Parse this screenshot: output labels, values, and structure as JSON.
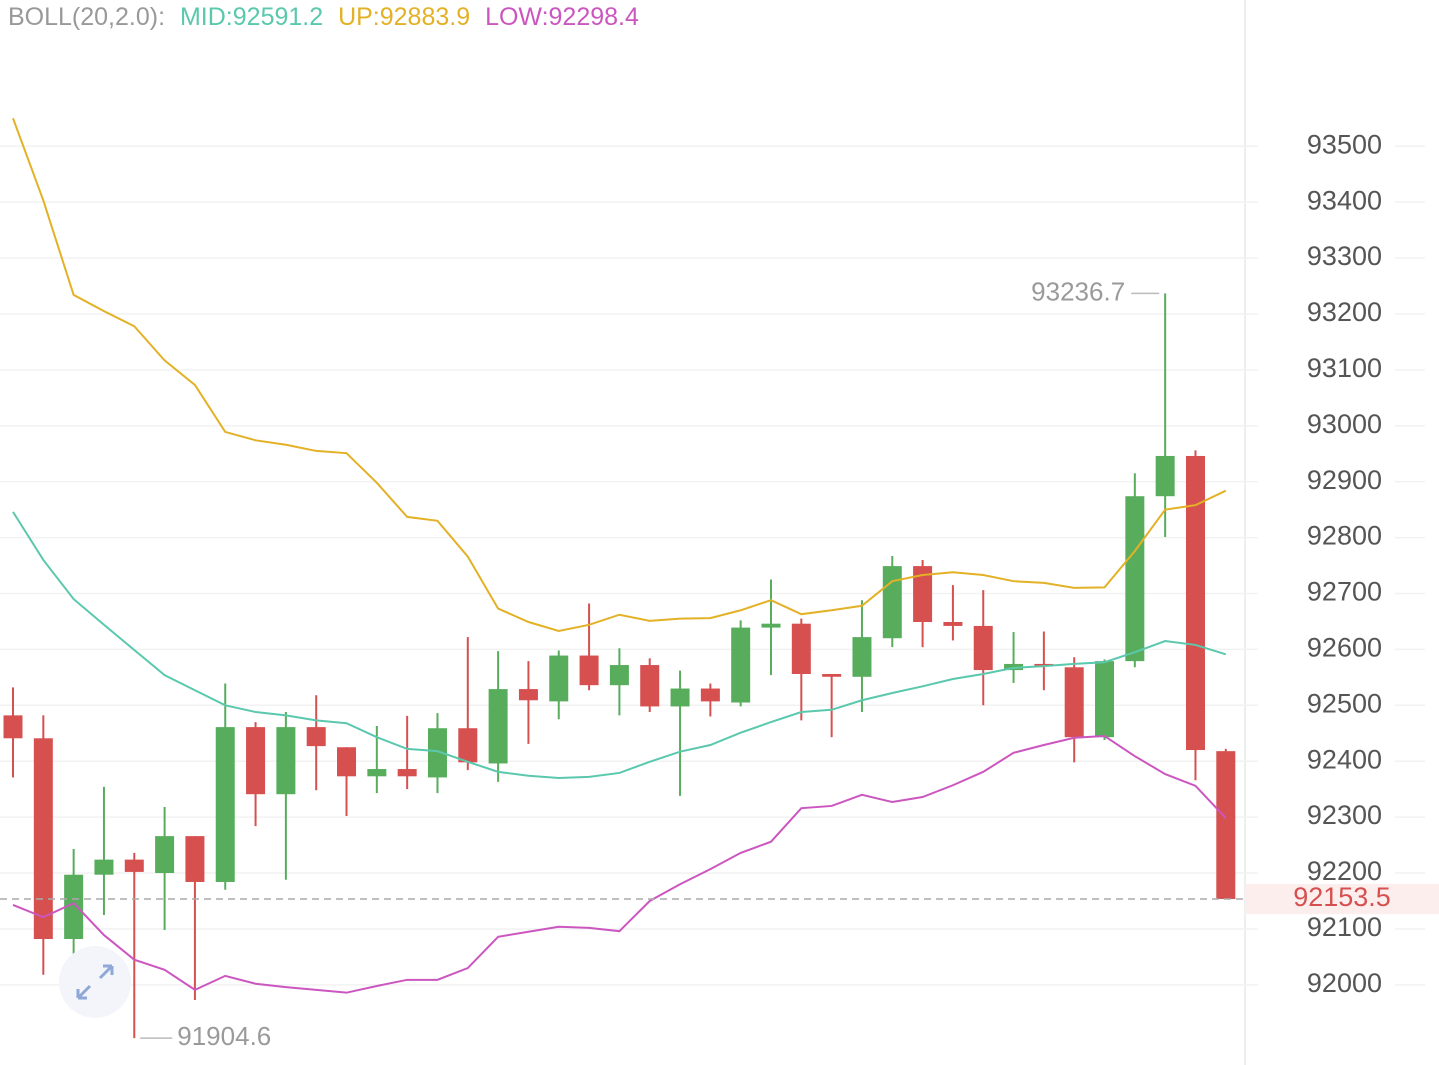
{
  "chart_data": {
    "type": "candlestick",
    "indicator_label": "BOLL(20,2.0):",
    "indicator_label_color": "#999999",
    "candles": {
      "open": [
        92482,
        92441,
        92082,
        92197,
        92224,
        92200,
        92266,
        92184,
        92461,
        92341,
        92461,
        92425,
        92373,
        92386,
        92371,
        92459,
        92396,
        92529,
        92507,
        92589,
        92536,
        92572,
        92498,
        92530,
        92505,
        92639,
        92646,
        92556,
        92551,
        92620,
        92749,
        92649,
        92642,
        92563,
        92574,
        92568,
        92443,
        92579,
        92874,
        92946,
        92418
      ],
      "high": [
        92532,
        92482,
        92243,
        92354,
        92236,
        92318,
        92266,
        92539,
        92470,
        92488,
        92518,
        92425,
        92463,
        92481,
        92486,
        92622,
        92597,
        92579,
        92598,
        92682,
        92602,
        92584,
        92562,
        92539,
        92652,
        92725,
        92655,
        92556,
        92688,
        92767,
        92760,
        92715,
        92706,
        92631,
        92632,
        92586,
        92582,
        92915,
        93236.7,
        92956,
        92422
      ],
      "low": [
        92371,
        92018,
        92054,
        92125,
        91904.6,
        92098,
        91973,
        92170,
        92284,
        92188,
        92348,
        92302,
        92343,
        92350,
        92343,
        92384,
        92363,
        92431,
        92475,
        92527,
        92482,
        92488,
        92338,
        92480,
        92498,
        92554,
        92473,
        92443,
        92488,
        92604,
        92604,
        92616,
        92500,
        92540,
        92527,
        92398,
        92438,
        92568,
        92801,
        92366,
        92153.5
      ],
      "close": [
        92441,
        92082,
        92197,
        92224,
        92202,
        92266,
        92184,
        92461,
        92341,
        92461,
        92427,
        92373,
        92386,
        92373,
        92459,
        92398,
        92529,
        92509,
        92589,
        92536,
        92572,
        92498,
        92530,
        92507,
        92639,
        92646,
        92556,
        92551,
        92622,
        92749,
        92649,
        92642,
        92563,
        92574,
        92572,
        92443,
        92579,
        92874,
        92946,
        92420,
        92153.5
      ],
      "up_color": "#58ad5d",
      "down_color": "#d65050"
    },
    "series": [
      {
        "name": "MID:92591.2",
        "color": "#5ac8ad",
        "values": [
          92846,
          92760,
          92690,
          92644,
          92599,
          92554,
          92527,
          92500,
          92488,
          92482,
          92473,
          92468,
          92443,
          92422,
          92418,
          92399,
          92381,
          92374,
          92370,
          92372,
          92379,
          92399,
          92417,
          92429,
          92451,
          92470,
          92488,
          92492,
          92509,
          92522,
          92534,
          92547,
          92556,
          92567,
          92570,
          92574,
          92577,
          92595,
          92615,
          92608,
          92591.2
        ]
      },
      {
        "name": "UP:92883.9",
        "color": "#e3b126",
        "values": [
          93550,
          93403,
          93234,
          93205,
          93178,
          93117,
          93073,
          92989,
          92974,
          92966,
          92955,
          92951,
          92898,
          92837,
          92830,
          92766,
          92673,
          92649,
          92633,
          92644,
          92662,
          92651,
          92655,
          92656,
          92670,
          92688,
          92663,
          92670,
          92678,
          92722,
          92733,
          92738,
          92733,
          92722,
          92719,
          92710,
          92711,
          92776,
          92850,
          92858,
          92883.9
        ]
      },
      {
        "name": "LOW:92298.4",
        "color": "#cc56c0",
        "values": [
          92143,
          92121,
          92146,
          92089,
          92045,
          92027,
          91991,
          92016,
          92002,
          91996,
          91991,
          91986,
          91998,
          92009,
          92009,
          92030,
          92086,
          92095,
          92104,
          92102,
          92096,
          92150,
          92180,
          92207,
          92236,
          92256,
          92316,
          92320,
          92340,
          92327,
          92336,
          92357,
          92381,
          92415,
          92429,
          92442,
          92445,
          92409,
          92377,
          92356,
          92298.4
        ]
      }
    ],
    "ylim": [
      91862,
      93690
    ],
    "yticks": [
      92000,
      92100,
      92200,
      92300,
      92400,
      92500,
      92600,
      92700,
      92800,
      92900,
      93000,
      93100,
      93200,
      93300,
      93400,
      93500
    ],
    "grid": true
  }
}
